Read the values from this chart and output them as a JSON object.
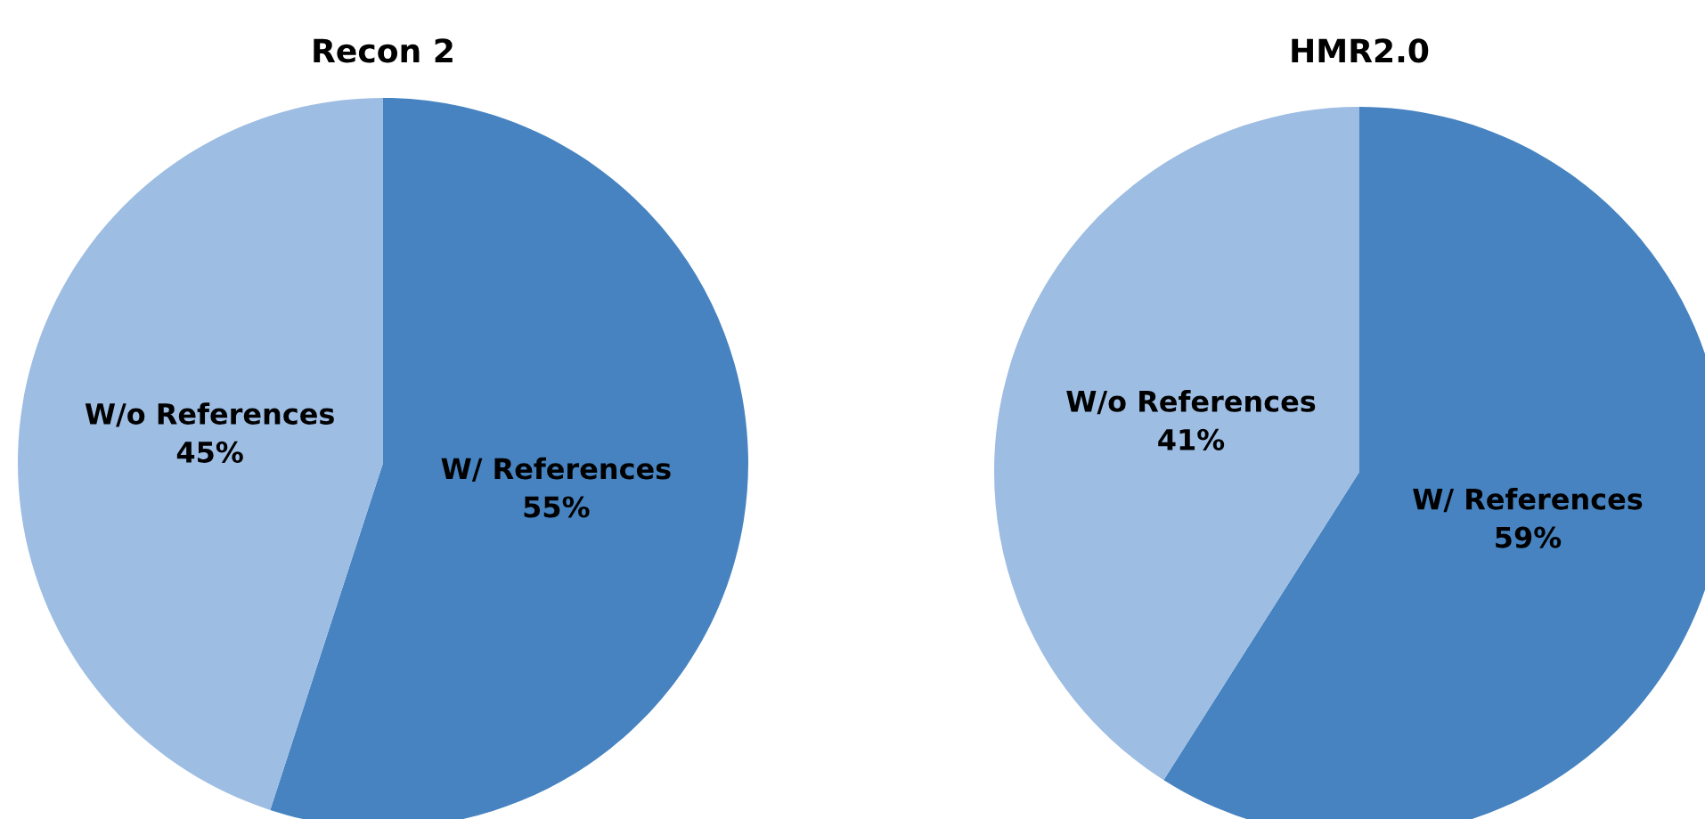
{
  "chart_data": [
    {
      "type": "pie",
      "title": "Recon 2",
      "categories": [
        "W/ References",
        "W/o References"
      ],
      "values": [
        55,
        45
      ],
      "value_labels": [
        "55%",
        "45%"
      ],
      "colors": [
        "#4683c0",
        "#9dbde3"
      ]
    },
    {
      "type": "pie",
      "title": "HMR2.0",
      "categories": [
        "W/ References",
        "W/o References"
      ],
      "values": [
        59,
        41
      ],
      "value_labels": [
        "59%",
        "41%"
      ],
      "colors": [
        "#4683c0",
        "#9dbde3"
      ]
    }
  ]
}
